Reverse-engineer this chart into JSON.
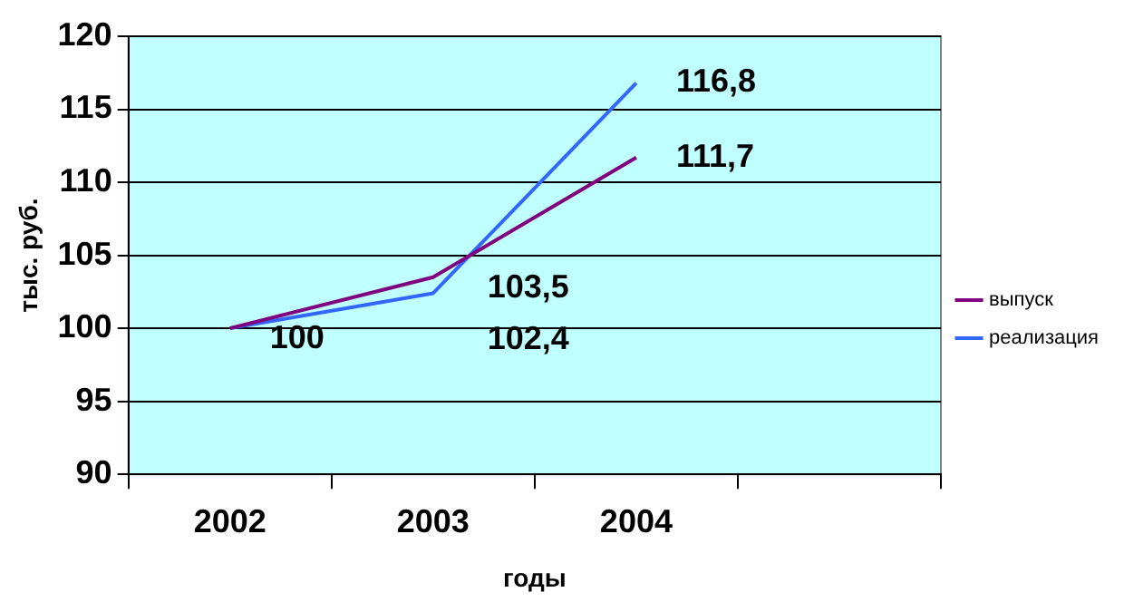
{
  "chart_data": {
    "type": "line",
    "xlabel": "годы",
    "ylabel": "тыс. руб.",
    "categories": [
      "2002",
      "2003",
      "2004",
      null
    ],
    "series": [
      {
        "name": "выпуск",
        "color": "#800080",
        "values": [
          100,
          103.5,
          111.7,
          null
        ],
        "value_labels": [
          "100",
          "103,5",
          "111,7",
          null
        ]
      },
      {
        "name": "реализация",
        "color": "#3366ff",
        "values": [
          100,
          102.4,
          116.8,
          null
        ],
        "value_labels": [
          null,
          "102,4",
          "116,8",
          null
        ]
      }
    ],
    "ylim": [
      90,
      120
    ],
    "yticks": [
      90,
      95,
      100,
      105,
      110,
      115,
      120
    ],
    "grid": "y",
    "legend": "right",
    "marker": "none"
  }
}
